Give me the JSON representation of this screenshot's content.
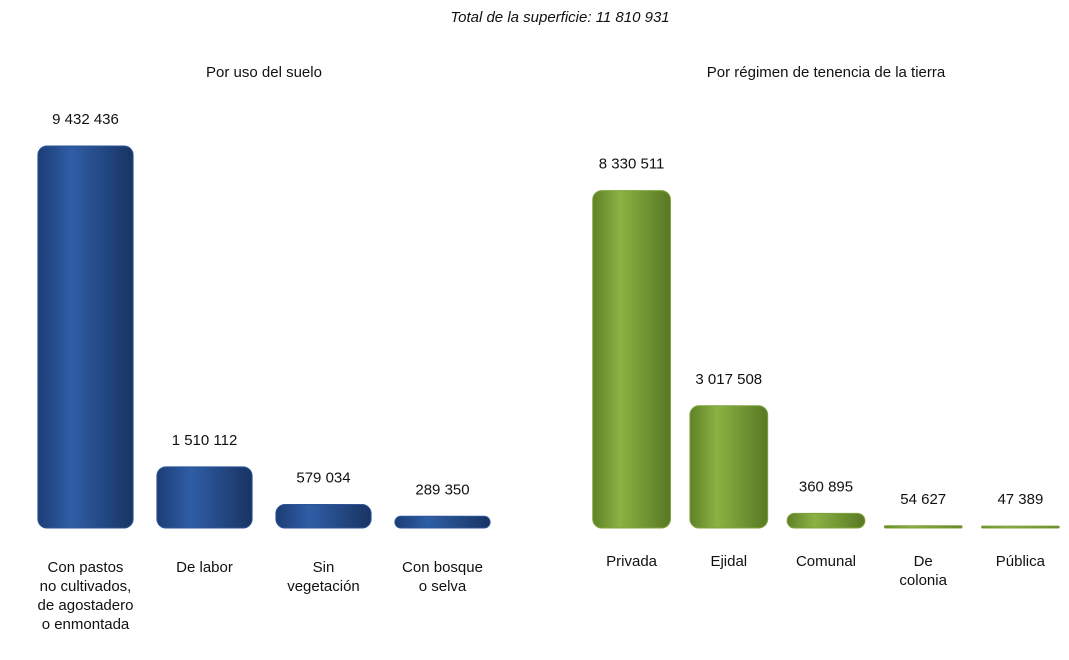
{
  "title": "Total de la superficie: 11 810  931",
  "chart_data": [
    {
      "type": "bar",
      "title": "Por uso del suelo",
      "categories": [
        "Con pastos\nno cultivados,\nde agostadero\no enmontada",
        "De labor",
        "Sin\nvegetación",
        "Con bosque\no selva"
      ],
      "values": [
        9432436,
        1510112,
        579034,
        289350
      ],
      "value_labels": [
        "9 432 436",
        "1 510 112",
        "579 034",
        "289 350"
      ],
      "color": "#2b5597"
    },
    {
      "type": "bar",
      "title": "Por régimen de tenencia de la tierra",
      "categories": [
        "Privada",
        "Ejidal",
        "Comunal",
        "De\ncolonia",
        "Pública"
      ],
      "values": [
        8330511,
        3017508,
        360895,
        54627,
        47389
      ],
      "value_labels": [
        "8 330 511",
        "3 017 508",
        "360 895",
        "54 627",
        "47 389"
      ],
      "color": "#7fa33c"
    }
  ]
}
